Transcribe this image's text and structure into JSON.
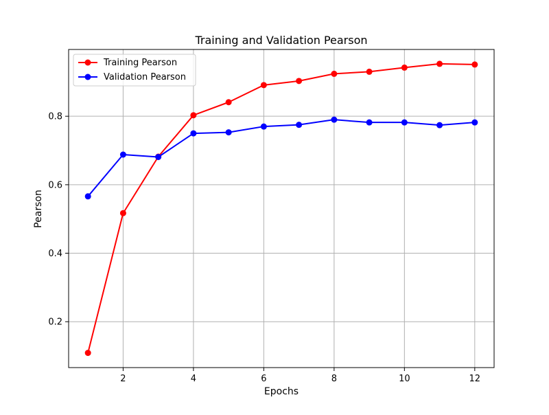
{
  "chart_data": {
    "type": "line",
    "title": "Training and Validation Pearson",
    "xlabel": "Epochs",
    "ylabel": "Pearson",
    "x": [
      1,
      2,
      3,
      4,
      5,
      6,
      7,
      8,
      9,
      10,
      11,
      12
    ],
    "xlim": [
      0.45,
      12.55
    ],
    "ylim": [
      0.066,
      0.995
    ],
    "xticks": [
      2,
      4,
      6,
      8,
      10,
      12
    ],
    "yticks": [
      0.2,
      0.4,
      0.6,
      0.8
    ],
    "xtick_labels": [
      "2",
      "4",
      "6",
      "8",
      "10",
      "12"
    ],
    "ytick_labels": [
      "0.2",
      "0.4",
      "0.6",
      "0.8"
    ],
    "grid": true,
    "legend_position": "upper-left",
    "series": [
      {
        "name": "Training Pearson",
        "color": "#ff0000",
        "marker": "circle",
        "values": [
          0.109,
          0.517,
          0.682,
          0.803,
          0.841,
          0.891,
          0.903,
          0.924,
          0.93,
          0.942,
          0.953,
          0.951
        ]
      },
      {
        "name": "Validation Pearson",
        "color": "#0000ff",
        "marker": "circle",
        "values": [
          0.566,
          0.688,
          0.681,
          0.75,
          0.753,
          0.77,
          0.775,
          0.79,
          0.782,
          0.782,
          0.774,
          0.782
        ]
      }
    ]
  }
}
